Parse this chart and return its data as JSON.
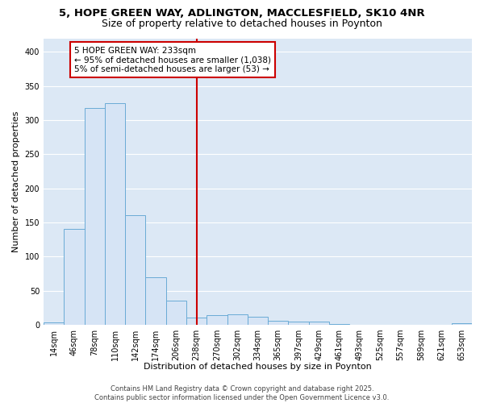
{
  "title_line1": "5, HOPE GREEN WAY, ADLINGTON, MACCLESFIELD, SK10 4NR",
  "title_line2": "Size of property relative to detached houses in Poynton",
  "xlabel": "Distribution of detached houses by size in Poynton",
  "ylabel": "Number of detached properties",
  "bar_labels": [
    "14sqm",
    "46sqm",
    "78sqm",
    "110sqm",
    "142sqm",
    "174sqm",
    "206sqm",
    "238sqm",
    "270sqm",
    "302sqm",
    "334sqm",
    "365sqm",
    "397sqm",
    "429sqm",
    "461sqm",
    "493sqm",
    "525sqm",
    "557sqm",
    "589sqm",
    "621sqm",
    "653sqm"
  ],
  "bar_values": [
    3,
    140,
    318,
    325,
    160,
    70,
    35,
    10,
    14,
    15,
    12,
    6,
    5,
    4,
    1,
    0,
    0,
    0,
    0,
    0,
    2
  ],
  "bar_color": "#d6e4f5",
  "bar_edge_color": "#6aabd6",
  "vline_x_index": 7,
  "vline_color": "#cc0000",
  "annotation_text": "5 HOPE GREEN WAY: 233sqm\n← 95% of detached houses are smaller (1,038)\n5% of semi-detached houses are larger (53) →",
  "annotation_box_facecolor": "#ffffff",
  "annotation_box_edgecolor": "#cc0000",
  "ylim": [
    0,
    420
  ],
  "yticks": [
    0,
    50,
    100,
    150,
    200,
    250,
    300,
    350,
    400
  ],
  "plot_bg_color": "#dce8f5",
  "fig_bg_color": "#ffffff",
  "grid_color": "#ffffff",
  "footer_text": "Contains HM Land Registry data © Crown copyright and database right 2025.\nContains public sector information licensed under the Open Government Licence v3.0.",
  "title_fontsize": 9.5,
  "subtitle_fontsize": 9,
  "axis_label_fontsize": 8,
  "tick_fontsize": 7,
  "annotation_fontsize": 7.5,
  "footer_fontsize": 6
}
